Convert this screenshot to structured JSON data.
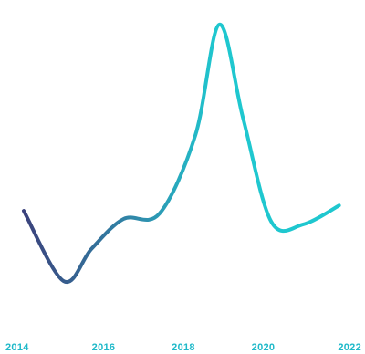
{
  "chart_data": {
    "type": "line",
    "title": "",
    "xlabel": "",
    "ylabel": "",
    "grid": false,
    "xlim": [
      2014,
      2022
    ],
    "ylim": [
      0,
      100
    ],
    "x_ticks": [
      "2014",
      "2016",
      "2018",
      "2020",
      "2022"
    ],
    "series": [
      {
        "x": [
          2014.0,
          2015.0,
          2015.7,
          2016.5,
          2017.4,
          2018.3,
          2018.9,
          2019.5,
          2020.2,
          2021.0,
          2021.9
        ],
        "values": [
          28,
          2,
          14,
          25,
          27,
          56,
          97,
          62,
          24,
          23,
          30
        ]
      }
    ],
    "colors": {
      "line_start": "#3b3f7a",
      "line_mid": "#2f8fae",
      "line_end": "#1fc7cf",
      "tick_label": "#1fb9c9"
    }
  }
}
